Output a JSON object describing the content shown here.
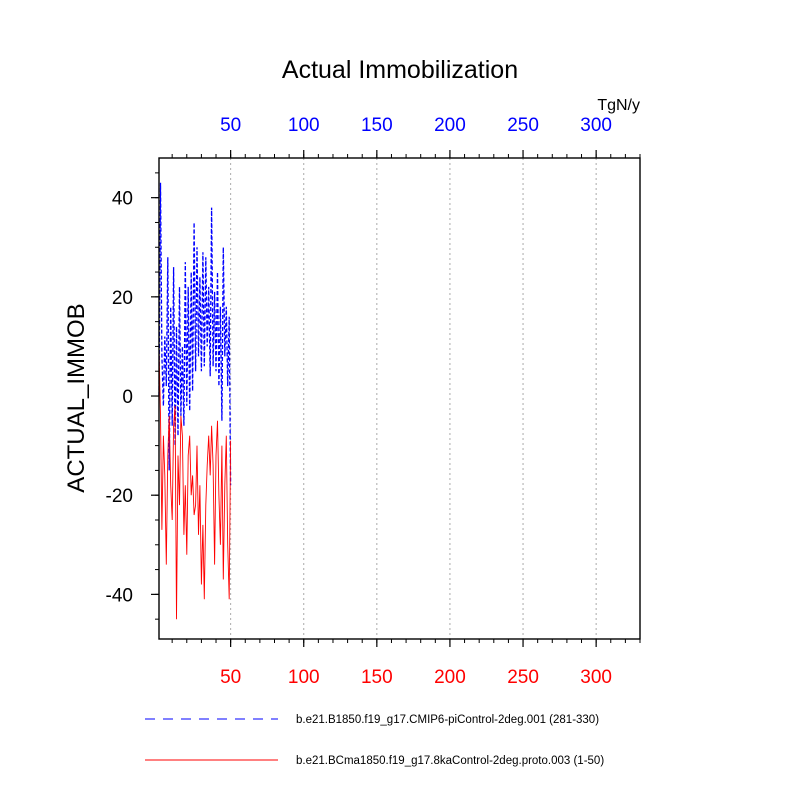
{
  "chart_data": {
    "type": "line",
    "title": "Actual Immobilization",
    "ylabel": "ACTUAL_IMMOB",
    "units": "TgN/y",
    "xlim": [
      1,
      330
    ],
    "ylim": [
      -49,
      48
    ],
    "x_ticks": [
      50,
      100,
      150,
      200,
      250,
      300
    ],
    "y_ticks": [
      -40,
      -20,
      0,
      20,
      40
    ],
    "x_minor_step": 10,
    "y_minor_step": 5,
    "grid": "vertical dotted lines at major x ticks",
    "top_axis_color": "#0000ff",
    "bottom_axis_color": "#ff0000",
    "series": [
      {
        "name": "b.e21.B1850.f19_g17.CMIP6-piControl-2deg.001 (281-330)",
        "color": "#0000ff",
        "style": "dashed",
        "x": [
          1,
          2,
          3,
          4,
          5,
          6,
          7,
          8,
          9,
          10,
          11,
          12,
          13,
          14,
          15,
          16,
          17,
          18,
          19,
          20,
          21,
          22,
          23,
          24,
          25,
          26,
          27,
          28,
          29,
          30,
          31,
          32,
          33,
          34,
          35,
          36,
          37,
          38,
          39,
          40,
          41,
          42,
          43,
          44,
          45,
          46,
          47,
          48,
          49,
          50
        ],
        "y": [
          0,
          43,
          8,
          -2,
          12,
          2,
          28,
          -15,
          18,
          -6,
          26,
          -10,
          14,
          -8,
          22,
          -4,
          10,
          -6,
          27,
          -2,
          22,
          -3,
          25,
          1,
          35,
          5,
          30,
          8,
          24,
          5,
          29,
          6,
          28,
          10,
          22,
          4,
          38,
          6,
          21,
          5,
          25,
          2,
          18,
          -5,
          30,
          8,
          18,
          2,
          16,
          -18
        ]
      },
      {
        "name": "b.e21.BCma1850.f19_g17.8kaControl-2deg.proto.003 (1-50)",
        "color": "#ff0000",
        "style": "solid",
        "x": [
          1,
          2,
          3,
          4,
          5,
          6,
          7,
          8,
          9,
          10,
          11,
          12,
          13,
          14,
          15,
          16,
          17,
          18,
          19,
          20,
          21,
          22,
          23,
          24,
          25,
          26,
          27,
          28,
          29,
          30,
          31,
          32,
          33,
          34,
          35,
          36,
          37,
          38,
          39,
          40,
          41,
          42,
          43,
          44,
          45,
          46,
          47,
          48,
          49,
          50
        ],
        "y": [
          10,
          -4,
          -27,
          -8,
          -16,
          -34,
          -12,
          -4,
          -18,
          -25,
          -6,
          -2,
          -45,
          -12,
          -22,
          -4,
          -8,
          -28,
          -18,
          -32,
          -12,
          -8,
          -20,
          -16,
          -24,
          -22,
          -10,
          -28,
          -18,
          -38,
          -26,
          -41,
          -22,
          -14,
          -8,
          -16,
          -6,
          -14,
          -34,
          -12,
          -5,
          -20,
          -30,
          -10,
          -37,
          -18,
          -8,
          -30,
          -41,
          -9
        ]
      }
    ]
  }
}
